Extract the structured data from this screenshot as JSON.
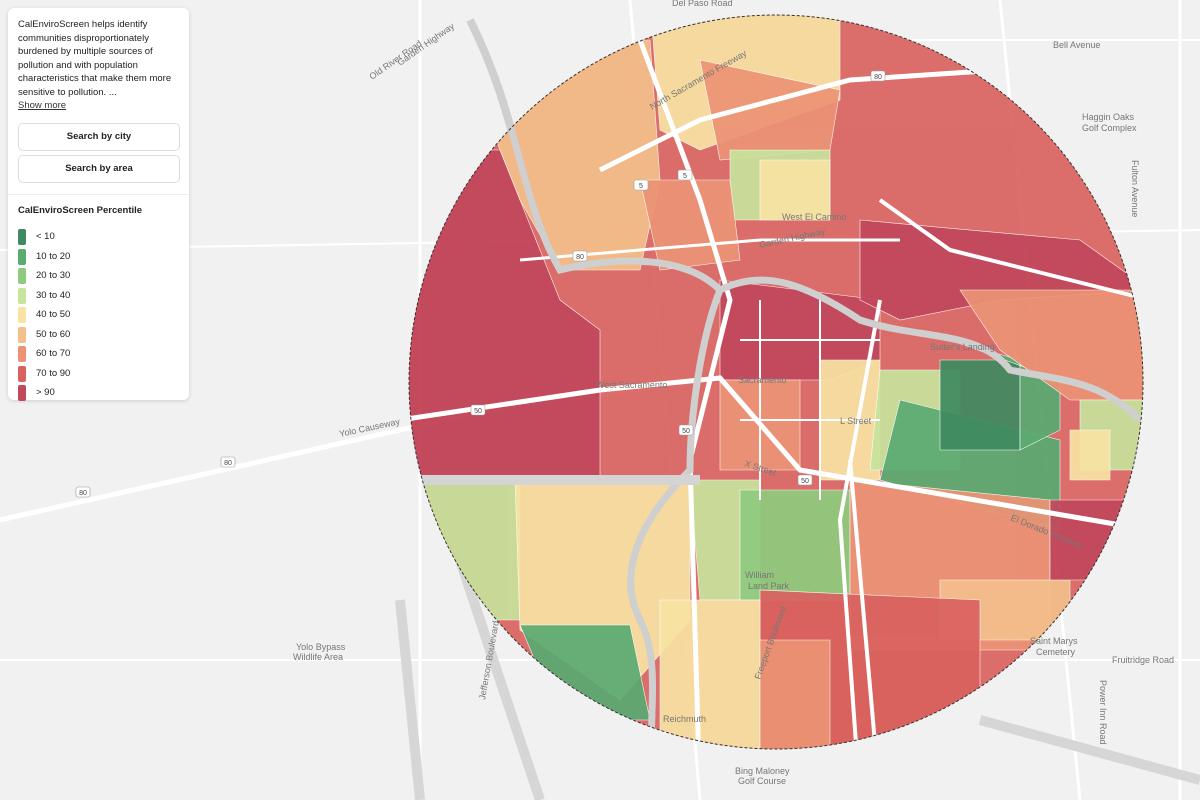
{
  "panel": {
    "description": "CalEnviroScreen helps identify communities disproportionately burdened by multiple sources of pollution and with population characteristics that make them more sensitive to pollution. ...",
    "show_more": "Show more",
    "buttons": [
      "Search by city",
      "Search by area"
    ]
  },
  "legend": {
    "title": "CalEnviroScreen Percentile",
    "items": [
      {
        "label": "< 10",
        "color": "#3f8a60"
      },
      {
        "label": "10 to 20",
        "color": "#5aab72"
      },
      {
        "label": "20 to 30",
        "color": "#8fcb7e"
      },
      {
        "label": "30 to 40",
        "color": "#c7e39c"
      },
      {
        "label": "40 to 50",
        "color": "#f8e3a3"
      },
      {
        "label": "50 to 60",
        "color": "#f4bf8b"
      },
      {
        "label": "60 to 70",
        "color": "#ec9375"
      },
      {
        "label": "70 to 90",
        "color": "#d9625f"
      },
      {
        "label": "> 90",
        "color": "#c2485c"
      }
    ]
  },
  "map": {
    "labels": [
      "Del Paso Road",
      "Bell Avenue",
      "Garden Highway",
      "Old River Road",
      "Haggin Oaks",
      "Golf Complex",
      "Fulton Avenue",
      "West El Camino",
      "Garden Highway",
      "Sutter's Landing",
      "Sacramento",
      "West Sacramento",
      "Yolo Causeway",
      "L Street",
      "X Street",
      "El Dorado Freeway",
      "William",
      "Land Park",
      "Freeport Boulevard",
      "Saint Marys",
      "Cemetery",
      "Fruitridge Road",
      "Power Inn Road",
      "Yolo Bypass",
      "Wildlife Area",
      "Jefferson Boulevard",
      "Reichmuth",
      "Bing Maloney",
      "Golf Course",
      "North Sacramento Freeway"
    ],
    "shields": [
      "80",
      "80",
      "80",
      "50",
      "50",
      "50",
      "5",
      "5",
      "80"
    ]
  }
}
